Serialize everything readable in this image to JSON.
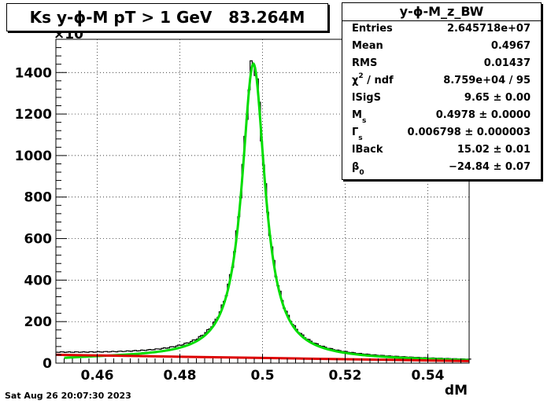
{
  "title": "Ks y-ϕ-M pT > 1 GeV   83.264M",
  "stats": {
    "name": "y-ϕ-M_z_BW",
    "rows": [
      {
        "key": "Entries",
        "value": "2.645718e+07"
      },
      {
        "key": "Mean",
        "value": "0.4967"
      },
      {
        "key": "RMS",
        "value": "0.01437"
      },
      {
        "key": "χ / ndf",
        "sup": "2",
        "value": "8.759e+04 / 95"
      },
      {
        "key": "lSigS",
        "value": "9.65 ± 0.00"
      },
      {
        "key": "M",
        "sub": "s",
        "value": "0.4978 ± 0.0000"
      },
      {
        "key": "Γ",
        "sub": "s",
        "value": "0.006798 ± 0.000003"
      },
      {
        "key": "lBack",
        "value": "15.02 ± 0.01"
      },
      {
        "key": "β",
        "sub": "0",
        "value": "−24.84 ± 0.07"
      }
    ]
  },
  "timestamp": "Sat Aug 26 20:07:30 2023",
  "colors": {
    "histogram": "#000000",
    "fit": "#00dd00",
    "background": "#dd0000"
  },
  "chart_data": {
    "type": "line",
    "xlabel": "dM",
    "ylabel": "",
    "y_multiplier_label": "×10",
    "xlim": [
      0.45,
      0.55
    ],
    "ylim": [
      0,
      1560
    ],
    "xticks": [
      0.46,
      0.48,
      0.5,
      0.52,
      0.54
    ],
    "xtick_labels": [
      "0.46",
      "0.48",
      "0.5",
      "0.52",
      "0.54"
    ],
    "yticks": [
      0,
      200,
      400,
      600,
      800,
      1000,
      1200,
      1400
    ],
    "ytick_labels": [
      "0",
      "200",
      "400",
      "600",
      "800",
      "1000",
      "1200",
      "1400"
    ],
    "grid": true,
    "peak": {
      "mean": 0.4978,
      "gamma": 0.006798,
      "height": 1420
    },
    "series": [
      {
        "kind": "histogram",
        "x": [
          0.452,
          0.46,
          0.47,
          0.48,
          0.485,
          0.49,
          0.493,
          0.495,
          0.496,
          0.497,
          0.498,
          0.499,
          0.5,
          0.501,
          0.503,
          0.505,
          0.51,
          0.515,
          0.52,
          0.53,
          0.54,
          0.548
        ],
        "values": [
          45,
          47,
          52,
          70,
          105,
          200,
          400,
          780,
          1150,
          1420,
          1470,
          1380,
          1100,
          820,
          450,
          270,
          130,
          80,
          55,
          35,
          22,
          14
        ]
      },
      {
        "kind": "fit",
        "x": [
          0.452,
          0.46,
          0.47,
          0.48,
          0.485,
          0.49,
          0.493,
          0.495,
          0.496,
          0.497,
          0.498,
          0.499,
          0.5,
          0.501,
          0.503,
          0.505,
          0.51,
          0.515,
          0.52,
          0.53,
          0.54,
          0.548
        ],
        "values": [
          5,
          10,
          22,
          50,
          90,
          190,
          390,
          760,
          1100,
          1380,
          1450,
          1360,
          1080,
          800,
          430,
          255,
          120,
          72,
          50,
          32,
          22,
          15
        ]
      },
      {
        "kind": "background",
        "x": [
          0.45,
          0.46,
          0.47,
          0.48,
          0.49,
          0.5,
          0.51,
          0.52,
          0.53,
          0.54,
          0.55
        ],
        "values": [
          40,
          37,
          34,
          31,
          28,
          25,
          22,
          19,
          16,
          13,
          10
        ]
      }
    ]
  }
}
